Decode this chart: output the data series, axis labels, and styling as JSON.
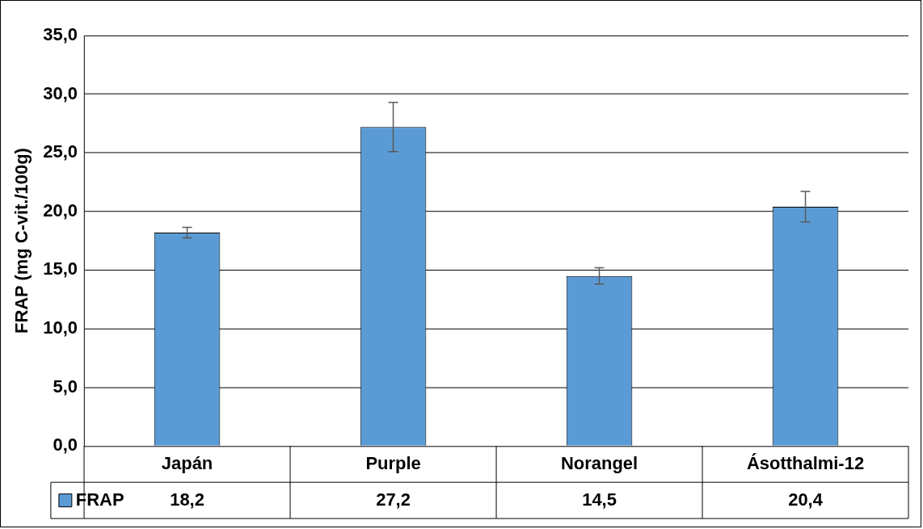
{
  "chart_data": {
    "type": "bar",
    "ylabel": "FRAP (mg C-vit./100g)",
    "categories": [
      "Japán",
      "Purple",
      "Norangel",
      "Ásotthalmi-12"
    ],
    "series": [
      {
        "name": "FRAP",
        "color": "#5b9bd5",
        "values": [
          18.2,
          27.2,
          14.5,
          20.4
        ],
        "value_labels": [
          "18,2",
          "27,2",
          "14,5",
          "20,4"
        ],
        "errors": [
          0.45,
          2.1,
          0.7,
          1.3
        ]
      }
    ],
    "ylim": [
      0,
      35
    ],
    "yticks": [
      {
        "value": 0,
        "label": "0,0"
      },
      {
        "value": 5,
        "label": "5,0"
      },
      {
        "value": 10,
        "label": "10,0"
      },
      {
        "value": 15,
        "label": "15,0"
      },
      {
        "value": 20,
        "label": "20,0"
      },
      {
        "value": 25,
        "label": "25,0"
      },
      {
        "value": 30,
        "label": "30,0"
      },
      {
        "value": 35,
        "label": "35,0"
      }
    ],
    "grid": "y",
    "legend": "bottom left"
  }
}
